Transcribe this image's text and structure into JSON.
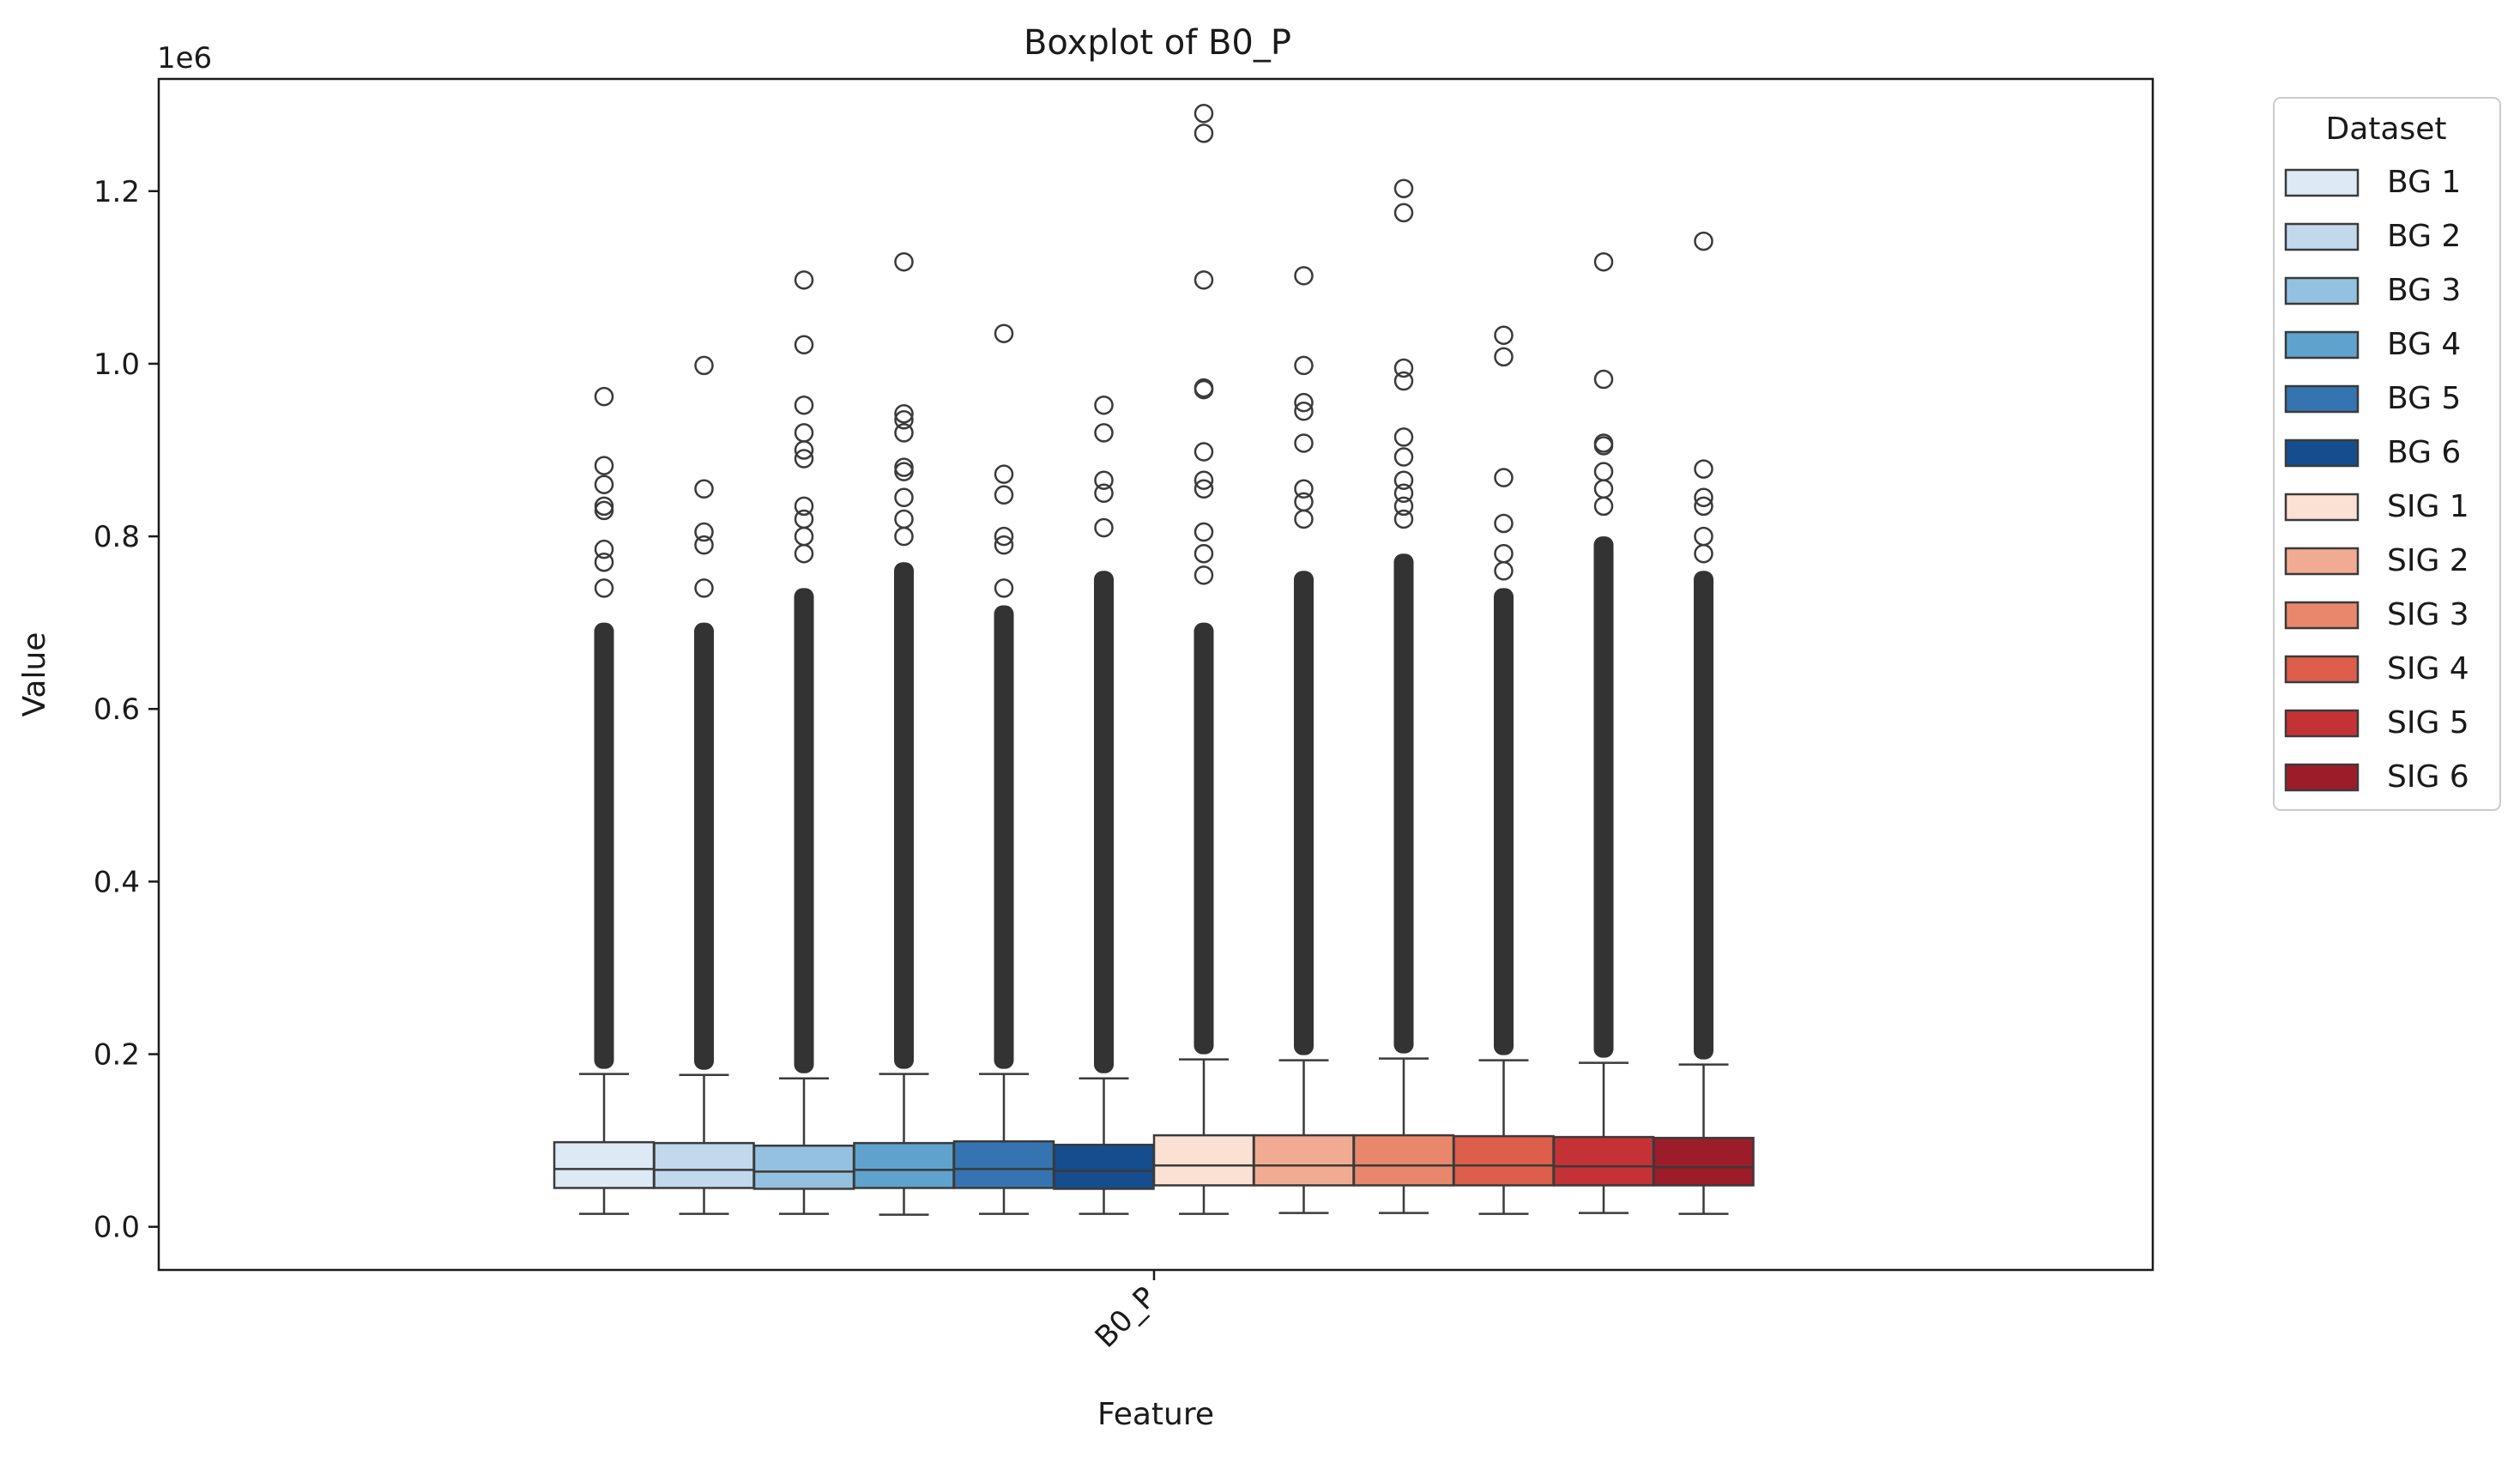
{
  "chart_data": {
    "type": "boxplot",
    "title": "Boxplot of B0_P",
    "xlabel": "Feature",
    "ylabel": "Value",
    "y_offset_label": "1e6",
    "categories": [
      "B0_P"
    ],
    "ylim": [
      -0.05,
      1.33
    ],
    "y_ticks": [
      0.0,
      0.2,
      0.4,
      0.6,
      0.8,
      1.0,
      1.2
    ],
    "y_tick_labels": [
      "0.0",
      "0.2",
      "0.4",
      "0.6",
      "0.8",
      "1.0",
      "1.2"
    ],
    "grid": false,
    "legend": {
      "title": "Dataset",
      "placement": "outside-right"
    },
    "series": [
      {
        "name": "BG 1",
        "color": "#dde9f4",
        "whisker_low": 0.015,
        "q1": 0.045,
        "median": 0.067,
        "q3": 0.098,
        "whisker_high": 0.177,
        "dense_top": 0.7,
        "outliers": [
          0.74,
          0.77,
          0.785,
          0.83,
          0.835,
          0.86,
          0.882,
          0.962
        ]
      },
      {
        "name": "BG 2",
        "color": "#c2d8ec",
        "whisker_low": 0.015,
        "q1": 0.045,
        "median": 0.066,
        "q3": 0.097,
        "whisker_high": 0.176,
        "dense_top": 0.7,
        "outliers": [
          0.74,
          0.79,
          0.805,
          0.855,
          0.998
        ]
      },
      {
        "name": "BG 3",
        "color": "#94c1df",
        "whisker_low": 0.015,
        "q1": 0.044,
        "median": 0.064,
        "q3": 0.094,
        "whisker_high": 0.172,
        "dense_top": 0.74,
        "outliers": [
          0.78,
          0.8,
          0.82,
          0.835,
          0.89,
          0.9,
          0.92,
          0.952,
          1.022,
          1.097
        ]
      },
      {
        "name": "BG 4",
        "color": "#5fa2cd",
        "whisker_low": 0.014,
        "q1": 0.045,
        "median": 0.066,
        "q3": 0.097,
        "whisker_high": 0.177,
        "dense_top": 0.77,
        "outliers": [
          0.8,
          0.82,
          0.845,
          0.875,
          0.88,
          0.92,
          0.935,
          0.942,
          1.118
        ]
      },
      {
        "name": "BG 5",
        "color": "#3574b1",
        "whisker_low": 0.015,
        "q1": 0.045,
        "median": 0.067,
        "q3": 0.099,
        "whisker_high": 0.177,
        "dense_top": 0.72,
        "outliers": [
          0.74,
          0.79,
          0.8,
          0.848,
          0.872,
          1.035
        ]
      },
      {
        "name": "BG 6",
        "color": "#154d8e",
        "whisker_low": 0.015,
        "q1": 0.044,
        "median": 0.065,
        "q3": 0.095,
        "whisker_high": 0.172,
        "dense_top": 0.76,
        "outliers": [
          0.81,
          0.85,
          0.865,
          0.92,
          0.952
        ]
      },
      {
        "name": "SIG 1",
        "color": "#fbe0d4",
        "whisker_low": 0.015,
        "q1": 0.048,
        "median": 0.071,
        "q3": 0.106,
        "whisker_high": 0.194,
        "dense_top": 0.7,
        "outliers": [
          0.755,
          0.78,
          0.805,
          0.855,
          0.865,
          0.898,
          0.97,
          0.972,
          1.097,
          1.267,
          1.29
        ]
      },
      {
        "name": "SIG 2",
        "color": "#f2ab93",
        "whisker_low": 0.016,
        "q1": 0.048,
        "median": 0.071,
        "q3": 0.106,
        "whisker_high": 0.193,
        "dense_top": 0.76,
        "outliers": [
          0.82,
          0.84,
          0.855,
          0.908,
          0.945,
          0.955,
          0.998,
          1.102
        ]
      },
      {
        "name": "SIG 3",
        "color": "#e8876c",
        "whisker_low": 0.016,
        "q1": 0.048,
        "median": 0.071,
        "q3": 0.106,
        "whisker_high": 0.195,
        "dense_top": 0.78,
        "outliers": [
          0.82,
          0.835,
          0.85,
          0.865,
          0.892,
          0.915,
          0.98,
          0.995,
          1.175,
          1.203
        ]
      },
      {
        "name": "SIG 4",
        "color": "#dc5e4b",
        "whisker_low": 0.015,
        "q1": 0.048,
        "median": 0.071,
        "q3": 0.105,
        "whisker_high": 0.193,
        "dense_top": 0.74,
        "outliers": [
          0.76,
          0.78,
          0.815,
          0.868,
          1.008,
          1.033
        ]
      },
      {
        "name": "SIG 5",
        "color": "#c53236",
        "whisker_low": 0.016,
        "q1": 0.048,
        "median": 0.07,
        "q3": 0.104,
        "whisker_high": 0.19,
        "dense_top": 0.8,
        "outliers": [
          0.835,
          0.855,
          0.875,
          0.905,
          0.908,
          0.982,
          1.118
        ]
      },
      {
        "name": "SIG 6",
        "color": "#9c1c29",
        "whisker_low": 0.015,
        "q1": 0.048,
        "median": 0.069,
        "q3": 0.103,
        "whisker_high": 0.188,
        "dense_top": 0.76,
        "outliers": [
          0.78,
          0.8,
          0.835,
          0.845,
          0.878,
          1.142
        ]
      }
    ]
  }
}
